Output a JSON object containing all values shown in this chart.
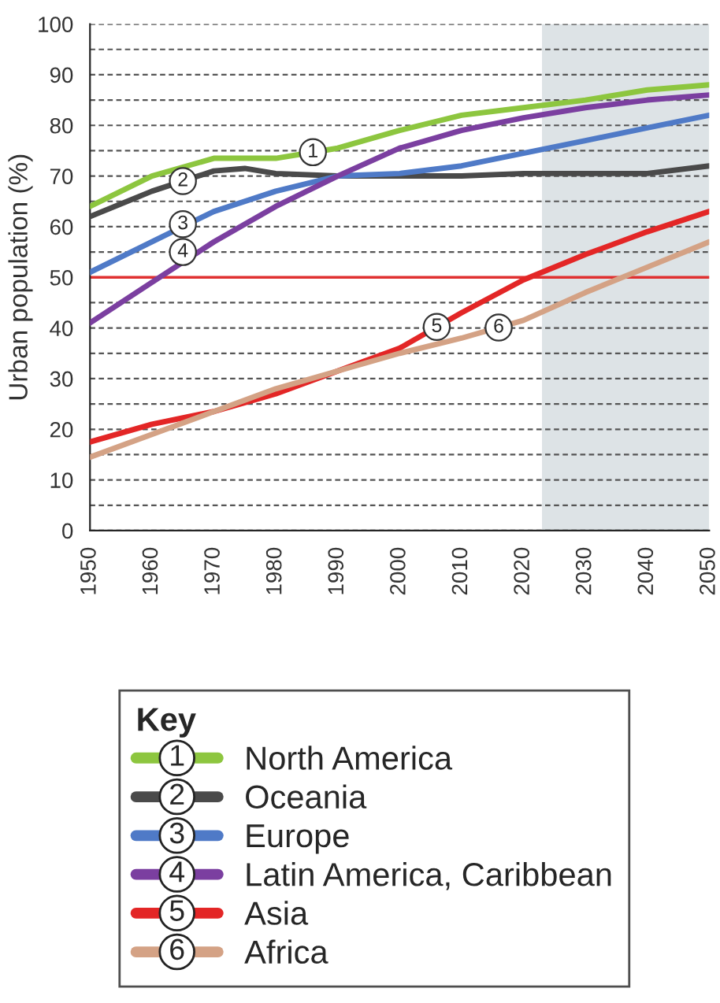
{
  "chart_data": {
    "type": "line",
    "ylabel": "Urban population (%)",
    "legend_title": "Key",
    "legend": "bottom",
    "grid": "y",
    "xlim": [
      1950,
      2050
    ],
    "xticks": [
      1950,
      1960,
      1970,
      1980,
      1990,
      2000,
      2010,
      2020,
      2030,
      2040,
      2050
    ],
    "ylim": [
      0,
      100
    ],
    "yticks": [
      0,
      {
        "value": 5,
        "label": null
      },
      10,
      {
        "value": 15,
        "label": null
      },
      20,
      {
        "value": 25,
        "label": null
      },
      30,
      {
        "value": 35,
        "label": null
      },
      40,
      {
        "value": 45,
        "label": null
      },
      50,
      {
        "value": 55,
        "label": null
      },
      60,
      {
        "value": 65,
        "label": null
      },
      70,
      {
        "value": 75,
        "label": null
      },
      80,
      {
        "value": 85,
        "label": null
      },
      90,
      {
        "value": 95,
        "label": null
      },
      100
    ],
    "x": [
      1950,
      1960,
      1970,
      1980,
      1990,
      2000,
      2010,
      2020,
      2030,
      2040,
      2050
    ],
    "series": [
      {
        "name": "North America",
        "color": "#8dc63f",
        "values": [
          64,
          70,
          73.5,
          73.5,
          75.5,
          79,
          82,
          83.5,
          85,
          87,
          88
        ]
      },
      {
        "name": "Oceania",
        "color": "#4a4a4a",
        "x": [
          1950,
          1960,
          1970,
          1975,
          1980,
          1990,
          2000,
          2010,
          2020,
          2040,
          2050
        ],
        "values": [
          62,
          67,
          71,
          71.5,
          70.5,
          70,
          70,
          70,
          70.5,
          70.5,
          72
        ]
      },
      {
        "name": "Europe",
        "color": "#4f7ac7",
        "values": [
          51,
          57,
          63,
          67,
          70,
          70.5,
          72,
          74.5,
          77,
          79.5,
          82
        ]
      },
      {
        "name": "Latin America, Caribbean",
        "color": "#7b3fa0",
        "values": [
          41,
          49,
          57,
          64,
          70,
          75.5,
          79,
          81.5,
          83.5,
          85,
          86
        ]
      },
      {
        "name": "Asia",
        "color": "#e32626",
        "values": [
          17.5,
          21,
          23.5,
          27,
          31.5,
          36,
          43,
          49.5,
          54.5,
          59,
          63
        ]
      },
      {
        "name": "Africa",
        "color": "#d4a285",
        "values": [
          14.5,
          19,
          23.5,
          28,
          31.5,
          35,
          38,
          41.5,
          47,
          52,
          57
        ]
      }
    ],
    "ref_lines": [
      {
        "axis": "y",
        "value": 50,
        "color": "#e03030",
        "line_style": "solid"
      }
    ],
    "bands": [
      {
        "axis": "x",
        "from": 2023,
        "to": 2050,
        "color": "#dde3e6"
      }
    ],
    "annotations": [
      {
        "text": "1",
        "x": 1986,
        "y": 74.7
      },
      {
        "text": "2",
        "x": 1965,
        "y": 69
      },
      {
        "text": "3",
        "x": 1965,
        "y": 60.5
      },
      {
        "text": "4",
        "x": 1965,
        "y": 55
      },
      {
        "text": "5",
        "x": 2006,
        "y": 40.2
      },
      {
        "text": "6",
        "x": 2016,
        "y": 40.1
      }
    ]
  }
}
